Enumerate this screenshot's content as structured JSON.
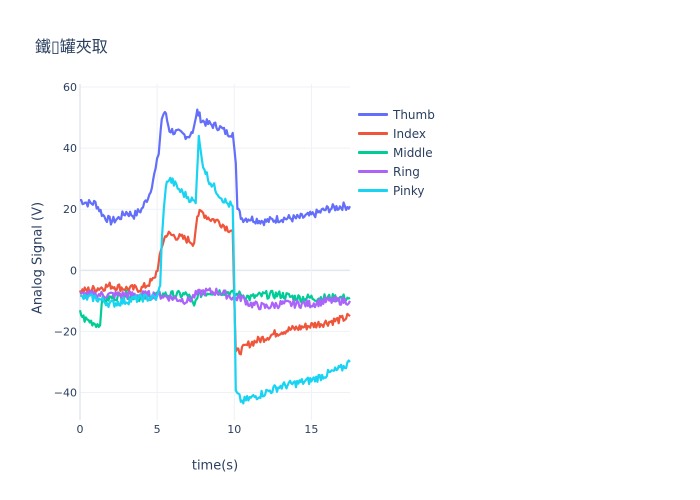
{
  "chart_data": {
    "type": "line",
    "title": "鐵▯罐夾取",
    "xlabel": "time(s)",
    "ylabel": "Analog Signal (V)",
    "xlim": [
      0,
      17.5
    ],
    "ylim": [
      -49,
      61
    ],
    "xticks": [
      0,
      5,
      10,
      15
    ],
    "yticks": [
      -40,
      -20,
      0,
      20,
      40,
      60
    ],
    "grid": true,
    "legend_position": "right",
    "series": [
      {
        "name": "Thumb",
        "color": "#636efa",
        "points": [
          [
            0,
            23
          ],
          [
            0.5,
            22
          ],
          [
            1,
            22
          ],
          [
            1.5,
            18
          ],
          [
            2,
            16
          ],
          [
            2.5,
            17
          ],
          [
            3,
            19
          ],
          [
            3.5,
            18
          ],
          [
            4,
            20
          ],
          [
            4.5,
            25
          ],
          [
            4.9,
            33
          ],
          [
            5.1,
            38
          ],
          [
            5.3,
            50
          ],
          [
            5.5,
            52
          ],
          [
            5.8,
            46
          ],
          [
            6.3,
            45
          ],
          [
            7,
            44
          ],
          [
            7.3,
            45
          ],
          [
            7.6,
            52
          ],
          [
            7.9,
            49
          ],
          [
            8.3,
            48
          ],
          [
            9,
            47
          ],
          [
            9.5,
            45
          ],
          [
            9.9,
            45
          ],
          [
            10.1,
            35
          ],
          [
            10.2,
            20
          ],
          [
            10.5,
            17
          ],
          [
            11,
            17
          ],
          [
            12,
            16
          ],
          [
            13,
            17
          ],
          [
            14,
            17
          ],
          [
            15,
            18
          ],
          [
            15.5,
            19
          ],
          [
            16,
            20
          ],
          [
            17,
            21
          ],
          [
            17.5,
            21
          ]
        ]
      },
      {
        "name": "Index",
        "color": "#ef553b",
        "points": [
          [
            0,
            -7
          ],
          [
            1,
            -6
          ],
          [
            2,
            -5
          ],
          [
            3,
            -6
          ],
          [
            4,
            -6
          ],
          [
            4.8,
            -3
          ],
          [
            5.1,
            2
          ],
          [
            5.3,
            8
          ],
          [
            5.6,
            12
          ],
          [
            6.3,
            11
          ],
          [
            7,
            10
          ],
          [
            7.4,
            9
          ],
          [
            7.6,
            18
          ],
          [
            7.9,
            19
          ],
          [
            8.4,
            17
          ],
          [
            9,
            16
          ],
          [
            9.5,
            14
          ],
          [
            9.9,
            13
          ],
          [
            10,
            -10
          ],
          [
            10.1,
            -27
          ],
          [
            10.5,
            -26
          ],
          [
            11,
            -24
          ],
          [
            12,
            -22
          ],
          [
            13,
            -20
          ],
          [
            14,
            -19
          ],
          [
            15,
            -18
          ],
          [
            16,
            -17
          ],
          [
            17,
            -16
          ],
          [
            17.5,
            -15
          ]
        ]
      },
      {
        "name": "Middle",
        "color": "#00cc96",
        "points": [
          [
            0,
            -14
          ],
          [
            0.3,
            -16
          ],
          [
            0.8,
            -17
          ],
          [
            1.3,
            -18
          ],
          [
            1.4,
            -10
          ],
          [
            2,
            -9
          ],
          [
            3,
            -8
          ],
          [
            4,
            -9
          ],
          [
            5,
            -8
          ],
          [
            6,
            -8
          ],
          [
            7,
            -8
          ],
          [
            7.4,
            -12
          ],
          [
            7.6,
            -8
          ],
          [
            8.5,
            -7
          ],
          [
            9.5,
            -7
          ],
          [
            10,
            -8
          ],
          [
            10.5,
            -8
          ],
          [
            11,
            -9
          ],
          [
            12,
            -8
          ],
          [
            13,
            -8
          ],
          [
            14,
            -9
          ],
          [
            15,
            -9
          ],
          [
            16,
            -9
          ],
          [
            17,
            -9
          ],
          [
            17.5,
            -9
          ]
        ]
      },
      {
        "name": "Ring",
        "color": "#ab63fa",
        "points": [
          [
            0,
            -8
          ],
          [
            1,
            -8
          ],
          [
            2,
            -8
          ],
          [
            3,
            -8
          ],
          [
            4,
            -8
          ],
          [
            5,
            -8
          ],
          [
            6,
            -9
          ],
          [
            7,
            -10
          ],
          [
            7.5,
            -8
          ],
          [
            8,
            -7
          ],
          [
            8.5,
            -7
          ],
          [
            9,
            -7
          ],
          [
            9.5,
            -8
          ],
          [
            10,
            -9
          ],
          [
            10.5,
            -9
          ],
          [
            11,
            -11
          ],
          [
            12,
            -12
          ],
          [
            13,
            -11
          ],
          [
            14,
            -11
          ],
          [
            15,
            -11
          ],
          [
            16,
            -10
          ],
          [
            17,
            -10
          ],
          [
            17.5,
            -10
          ]
        ]
      },
      {
        "name": "Pinky",
        "color": "#19d3f3",
        "points": [
          [
            0,
            -9
          ],
          [
            1,
            -9
          ],
          [
            2,
            -11
          ],
          [
            3,
            -10
          ],
          [
            4,
            -9
          ],
          [
            5,
            -9
          ],
          [
            5.2,
            -5
          ],
          [
            5.3,
            10
          ],
          [
            5.5,
            25
          ],
          [
            5.7,
            30
          ],
          [
            6,
            29
          ],
          [
            6.5,
            26
          ],
          [
            7,
            24
          ],
          [
            7.5,
            22
          ],
          [
            7.7,
            44
          ],
          [
            7.9,
            36
          ],
          [
            8.3,
            30
          ],
          [
            9,
            25
          ],
          [
            9.5,
            22
          ],
          [
            9.9,
            21
          ],
          [
            10,
            -5
          ],
          [
            10.1,
            -40
          ],
          [
            10.5,
            -43
          ],
          [
            11,
            -42
          ],
          [
            12,
            -40
          ],
          [
            13,
            -38
          ],
          [
            14,
            -37
          ],
          [
            15,
            -36
          ],
          [
            16,
            -34
          ],
          [
            17,
            -32
          ],
          [
            17.5,
            -30
          ]
        ]
      }
    ]
  }
}
